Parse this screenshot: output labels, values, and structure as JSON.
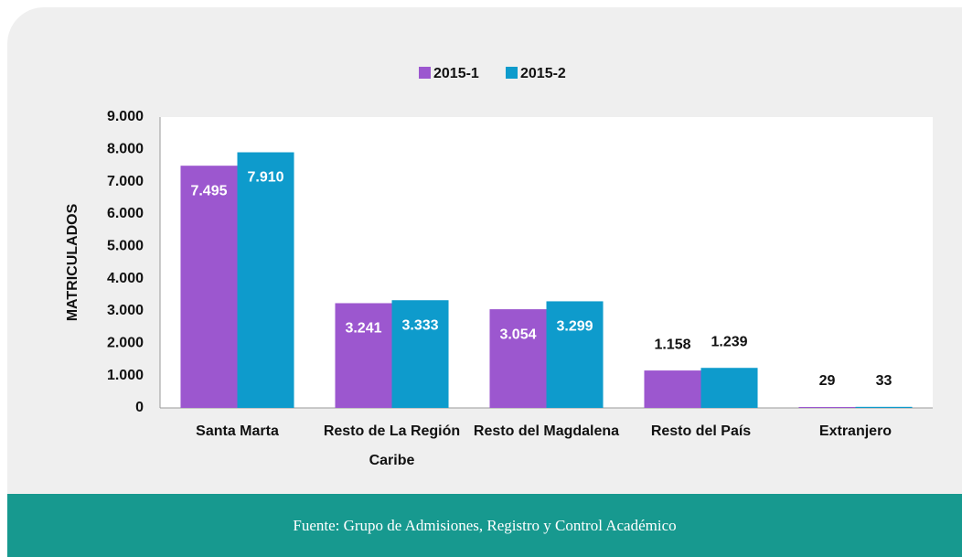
{
  "chart_data": {
    "type": "bar",
    "categories": [
      "Santa Marta",
      "Resto de La Región Caribe",
      "Resto del Magdalena",
      "Resto del País",
      "Extranjero"
    ],
    "series": [
      {
        "name": "2015-1",
        "color": "#9c57cf",
        "values": [
          7495,
          3241,
          3054,
          1158,
          29
        ],
        "value_labels": [
          "7.495",
          "3.241",
          "3.054",
          "1.158",
          "29"
        ]
      },
      {
        "name": "2015-2",
        "color": "#0e9bcc",
        "values": [
          7910,
          3333,
          3299,
          1239,
          33
        ],
        "value_labels": [
          "7.910",
          "3.333",
          "3.299",
          "1.239",
          "33"
        ]
      }
    ],
    "ylabel": "MATRICULADOS",
    "ylim": [
      0,
      9000
    ],
    "yticks": [
      {
        "value": 0,
        "label": "0"
      },
      {
        "value": 1000,
        "label": "1.000"
      },
      {
        "value": 2000,
        "label": "2.000"
      },
      {
        "value": 3000,
        "label": "3.000"
      },
      {
        "value": 4000,
        "label": "4.000"
      },
      {
        "value": 5000,
        "label": "5.000"
      },
      {
        "value": 6000,
        "label": "6.000"
      },
      {
        "value": 7000,
        "label": "7.000"
      },
      {
        "value": 8000,
        "label": "8.000"
      },
      {
        "value": 9000,
        "label": "9.000"
      }
    ],
    "grid": false,
    "legend": "top"
  },
  "footer": {
    "text": "Fuente: Grupo de Admisiones, Registro y Control Académico"
  }
}
